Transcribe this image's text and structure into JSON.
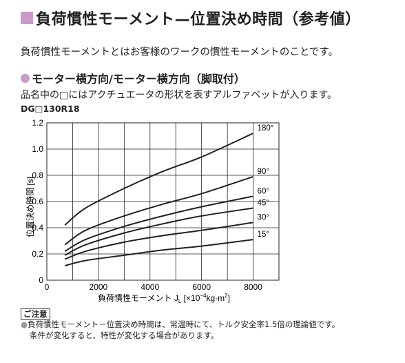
{
  "header": {
    "title": "負荷慣性モーメント—位置決め時間（参考値）",
    "intro": "負荷慣性モーメントとはお客様のワークの慣性モーメントのことです。"
  },
  "section": {
    "subtitle": "モーター横方向/モーター横方向（脚取付）",
    "description": "品名中の□にはアクチュエータの形状を表すアルファベットが入ります。",
    "model": "DG□130R18"
  },
  "chart_data": {
    "type": "line",
    "xlabel": "負荷慣性モーメント J",
    "xlabel_sub": "L",
    "xlabel_unit_pre": " [×10",
    "xlabel_unit_exp": "−4",
    "xlabel_unit_post": "kg·m",
    "xlabel_unit_exp2": "2",
    "xlabel_unit_end": "]",
    "ylabel": "位置決め時間 [s]",
    "xlim": [
      0,
      9000
    ],
    "ylim": [
      0,
      1.2
    ],
    "x_ticks": [
      "0",
      "2000",
      "4000",
      "6000",
      "8000"
    ],
    "y_ticks": [
      "0",
      "0.2",
      "0.4",
      "0.6",
      "0.8",
      "1.0",
      "1.2"
    ],
    "grid": true,
    "series": [
      {
        "name": "180°",
        "x": [
          700,
          1500,
          3000,
          4500,
          6000,
          8000
        ],
        "y": [
          0.42,
          0.55,
          0.7,
          0.83,
          0.94,
          1.12
        ]
      },
      {
        "name": "90°",
        "x": [
          700,
          1500,
          3000,
          4500,
          6000,
          8000
        ],
        "y": [
          0.27,
          0.38,
          0.49,
          0.58,
          0.66,
          0.79
        ]
      },
      {
        "name": "60°",
        "x": [
          700,
          1500,
          3000,
          4500,
          6000,
          8000
        ],
        "y": [
          0.22,
          0.31,
          0.41,
          0.49,
          0.56,
          0.64
        ]
      },
      {
        "name": "45°",
        "x": [
          700,
          1500,
          3000,
          4500,
          6000,
          8000
        ],
        "y": [
          0.19,
          0.27,
          0.36,
          0.43,
          0.49,
          0.55
        ]
      },
      {
        "name": "30°",
        "x": [
          700,
          1500,
          3000,
          4500,
          6000,
          8000
        ],
        "y": [
          0.16,
          0.22,
          0.29,
          0.34,
          0.38,
          0.44
        ]
      },
      {
        "name": "15°",
        "x": [
          700,
          1500,
          3000,
          4500,
          6000,
          8000
        ],
        "y": [
          0.11,
          0.15,
          0.19,
          0.23,
          0.26,
          0.31
        ]
      }
    ]
  },
  "caution": {
    "label": "ご注意",
    "bullet": "●",
    "line1": "負荷慣性モーメント－位置決め時間は、常温時にて、トルク安全率1.5倍の理論値です。",
    "line2": "条件が変化すると、特性が変化する場合があります。"
  }
}
